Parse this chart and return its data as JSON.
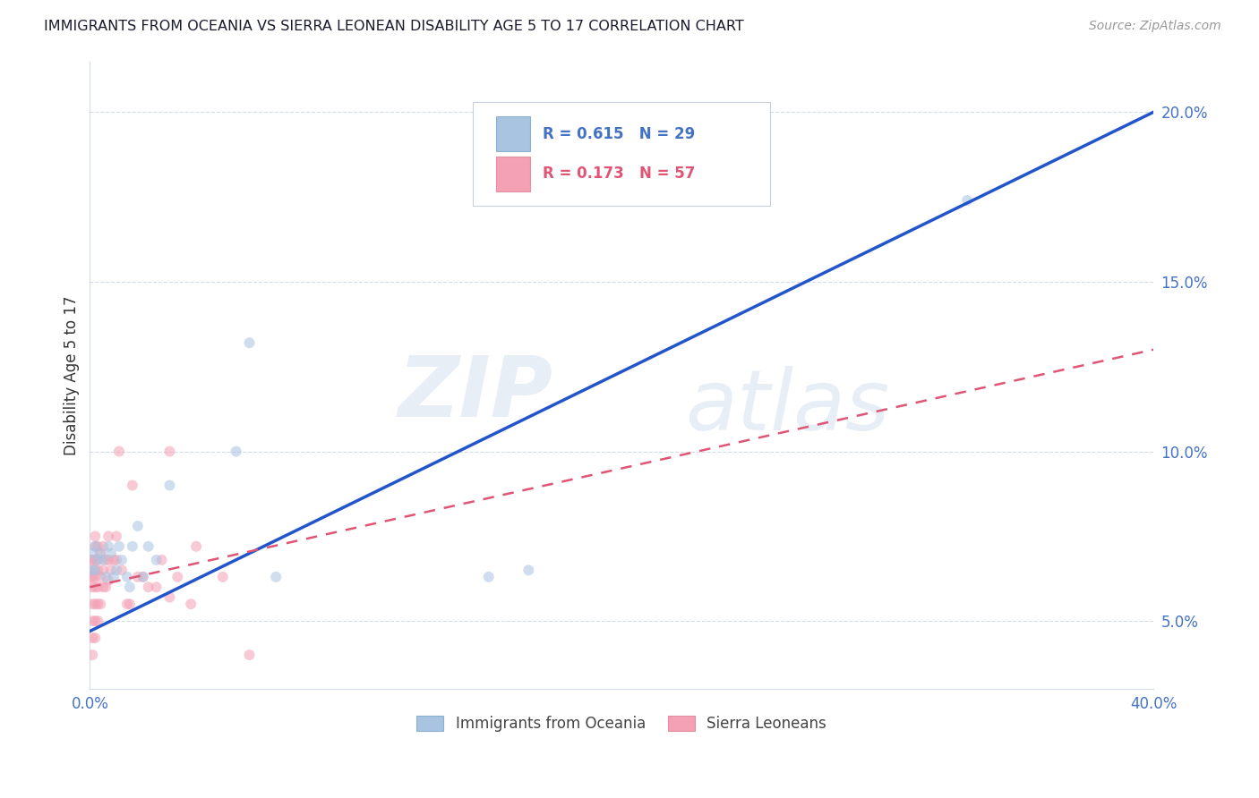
{
  "title": "IMMIGRANTS FROM OCEANIA VS SIERRA LEONEAN DISABILITY AGE 5 TO 17 CORRELATION CHART",
  "source": "Source: ZipAtlas.com",
  "ylabel": "Disability Age 5 to 17",
  "yticks": [
    0.05,
    0.1,
    0.15,
    0.2
  ],
  "ytick_labels": [
    "5.0%",
    "10.0%",
    "15.0%",
    "20.0%"
  ],
  "xlim": [
    0.0,
    0.4
  ],
  "ylim": [
    0.03,
    0.215
  ],
  "watermark_top": "ZIP",
  "watermark_bot": "atlas",
  "legend": {
    "series1_color": "#a8c4e0",
    "series1_label": "Immigrants from Oceania",
    "series1_R": "0.615",
    "series1_N": "29",
    "series2_color": "#f4a0b5",
    "series2_label": "Sierra Leoneans",
    "series2_R": "0.173",
    "series2_N": "57"
  },
  "blue_scatter_x": [
    0.001,
    0.001,
    0.002,
    0.002,
    0.003,
    0.004,
    0.005,
    0.006,
    0.007,
    0.008,
    0.009,
    0.01,
    0.011,
    0.012,
    0.014,
    0.015,
    0.016,
    0.018,
    0.02,
    0.022,
    0.025,
    0.03,
    0.055,
    0.06,
    0.07,
    0.15,
    0.155,
    0.165,
    0.33
  ],
  "blue_scatter_y": [
    0.065,
    0.07,
    0.065,
    0.072,
    0.068,
    0.07,
    0.068,
    0.063,
    0.072,
    0.07,
    0.063,
    0.065,
    0.072,
    0.068,
    0.063,
    0.06,
    0.072,
    0.078,
    0.063,
    0.072,
    0.068,
    0.09,
    0.1,
    0.132,
    0.063,
    0.063,
    0.187,
    0.065,
    0.174
  ],
  "pink_scatter_x": [
    0.0005,
    0.0005,
    0.001,
    0.001,
    0.001,
    0.001,
    0.001,
    0.001,
    0.001,
    0.001,
    0.002,
    0.002,
    0.002,
    0.002,
    0.002,
    0.002,
    0.002,
    0.002,
    0.002,
    0.003,
    0.003,
    0.003,
    0.003,
    0.003,
    0.003,
    0.004,
    0.004,
    0.004,
    0.005,
    0.005,
    0.005,
    0.006,
    0.006,
    0.007,
    0.007,
    0.007,
    0.008,
    0.009,
    0.01,
    0.01,
    0.011,
    0.012,
    0.014,
    0.015,
    0.016,
    0.018,
    0.02,
    0.022,
    0.025,
    0.027,
    0.03,
    0.03,
    0.033,
    0.038,
    0.04,
    0.05,
    0.06
  ],
  "pink_scatter_y": [
    0.063,
    0.068,
    0.04,
    0.045,
    0.05,
    0.055,
    0.06,
    0.063,
    0.065,
    0.068,
    0.045,
    0.05,
    0.055,
    0.06,
    0.063,
    0.065,
    0.068,
    0.072,
    0.075,
    0.05,
    0.055,
    0.06,
    0.065,
    0.068,
    0.072,
    0.055,
    0.063,
    0.07,
    0.06,
    0.065,
    0.072,
    0.06,
    0.068,
    0.062,
    0.068,
    0.075,
    0.065,
    0.068,
    0.068,
    0.075,
    0.1,
    0.065,
    0.055,
    0.055,
    0.09,
    0.063,
    0.063,
    0.06,
    0.06,
    0.068,
    0.057,
    0.1,
    0.063,
    0.055,
    0.072,
    0.063,
    0.04
  ],
  "blue_line_x": [
    0.0,
    0.4
  ],
  "blue_line_y": [
    0.047,
    0.2
  ],
  "pink_line_x": [
    0.0,
    0.4
  ],
  "pink_line_y": [
    0.06,
    0.13
  ],
  "background_color": "#ffffff",
  "scatter_size": 75,
  "scatter_alpha": 0.55,
  "grid_color": "#d4dce8",
  "title_color": "#1a1a2e",
  "axis_label_color": "#4472c4",
  "watermark_color": "#c5d5ea",
  "watermark_alpha": 0.4
}
